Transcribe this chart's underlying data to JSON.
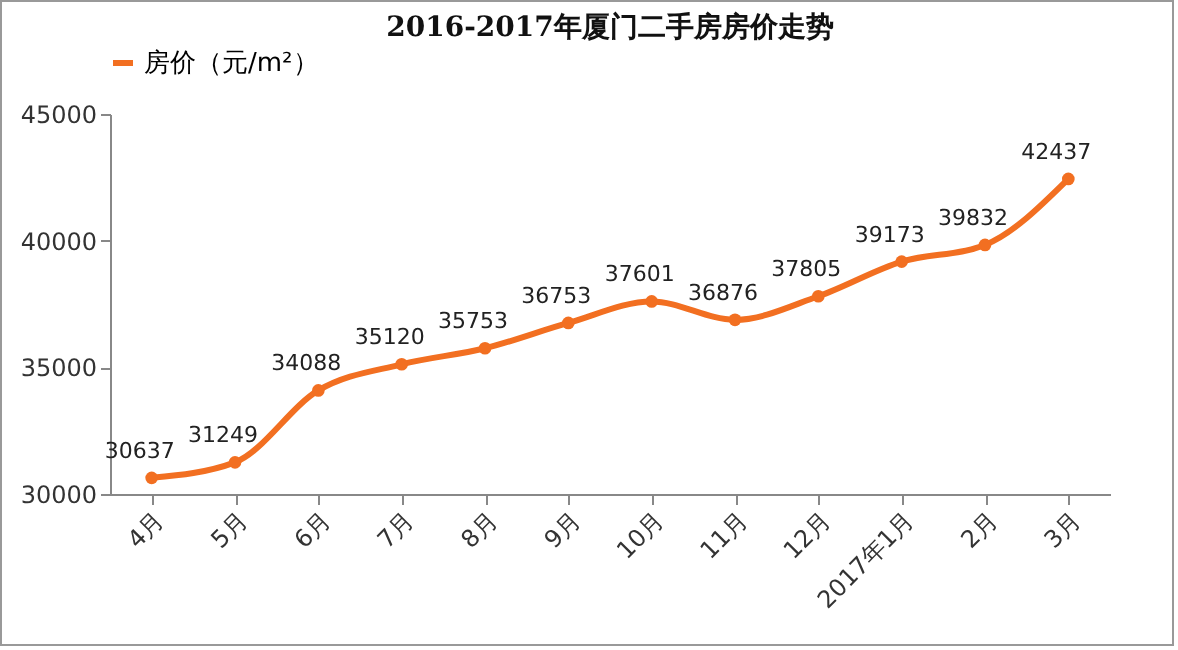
{
  "chart_data": {
    "type": "line",
    "title": "2016-2017年厦门二手房房价走势",
    "categories": [
      "4月",
      "5月",
      "6月",
      "7月",
      "8月",
      "9月",
      "10月",
      "11月",
      "12月",
      "2017年1月",
      "2月",
      "3月"
    ],
    "series": [
      {
        "name": "房价（元/m²）",
        "color": "#f26f21",
        "values": [
          30637,
          31249,
          34088,
          35120,
          35753,
          36753,
          37601,
          36876,
          37805,
          39173,
          39832,
          42437
        ]
      }
    ],
    "ylim": [
      30000,
      45000
    ],
    "yticks": [
      30000,
      35000,
      40000,
      45000
    ],
    "grid": false,
    "legend": "top",
    "marker": "circle",
    "line_style": "solid",
    "data_labels": true
  }
}
